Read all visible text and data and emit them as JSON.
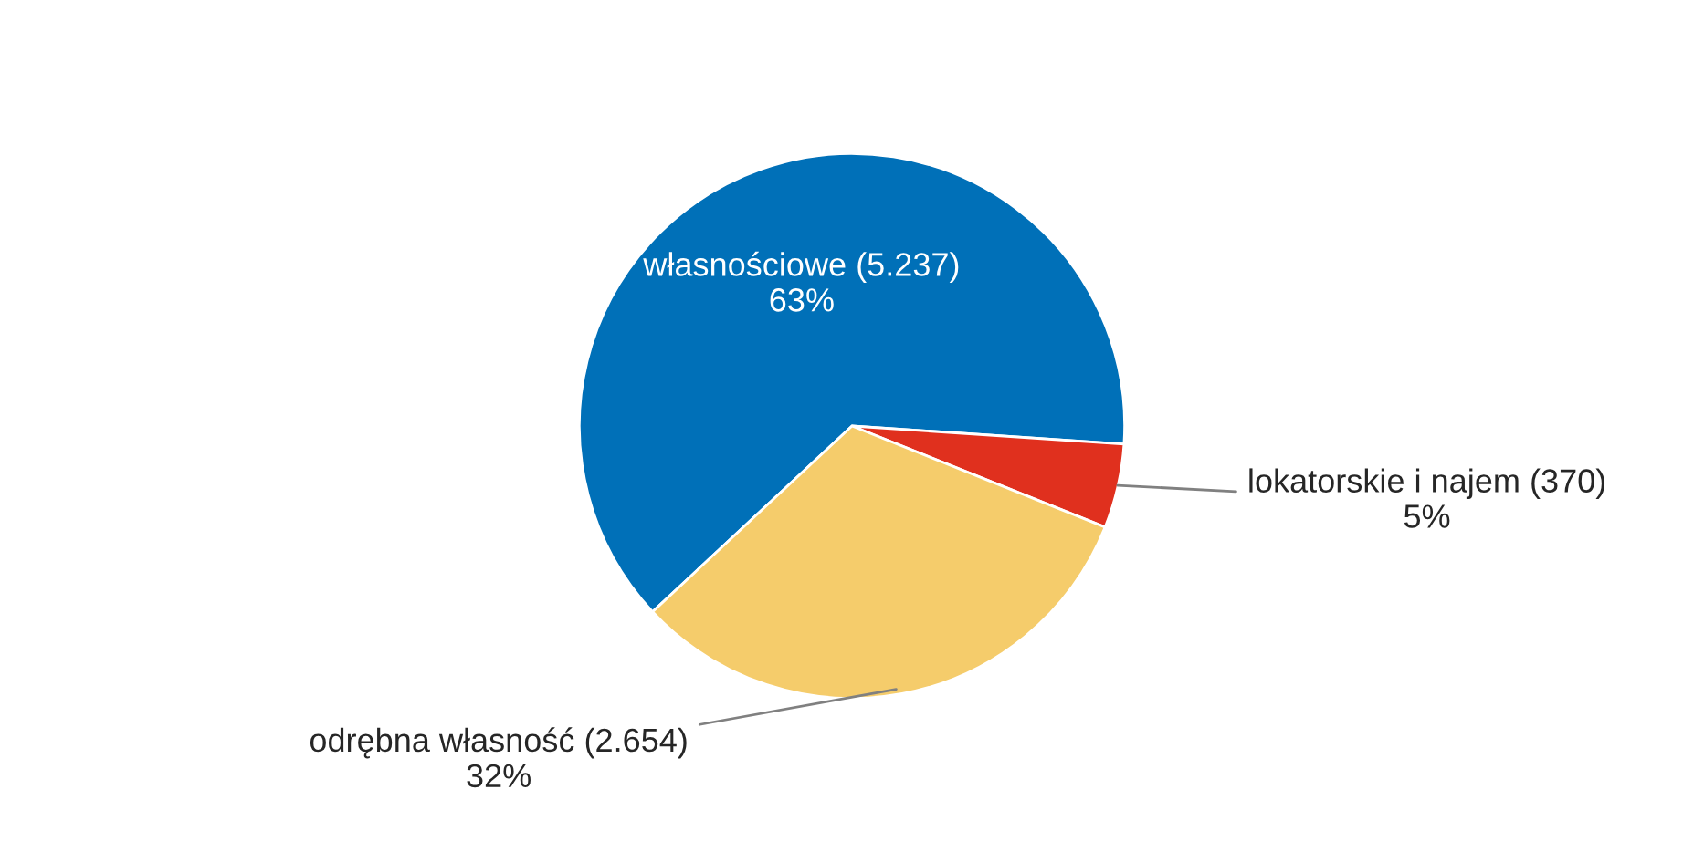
{
  "chart_data": {
    "type": "pie",
    "categories": [
      "własnościowe (5.237)",
      "lokatorskie i najem (370)",
      "odrębna własność (2.654)"
    ],
    "values": [
      63,
      5,
      32
    ],
    "value_labels": [
      "63%",
      "5%",
      "32%"
    ],
    "colors": [
      "#0070b8",
      "#e0301e",
      "#f5cc6b"
    ]
  }
}
